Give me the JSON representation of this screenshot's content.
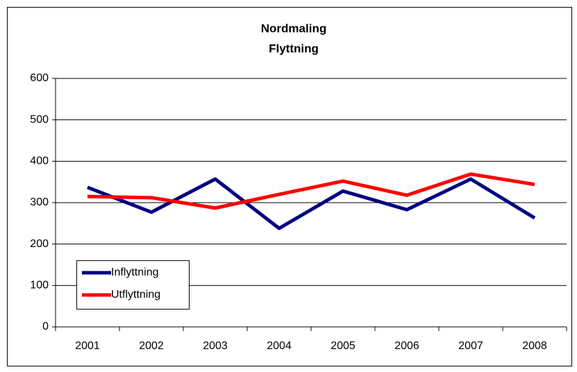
{
  "chart_data": {
    "type": "line",
    "title": "Nordmaling",
    "subtitle": "Flyttning",
    "categories": [
      "2001",
      "2002",
      "2003",
      "2004",
      "2005",
      "2006",
      "2007",
      "2008"
    ],
    "series": [
      {
        "name": "Inflyttning",
        "color": "#000080",
        "values": [
          337,
          277,
          357,
          238,
          328,
          283,
          357,
          263
        ]
      },
      {
        "name": "Utflyttning",
        "color": "#ff0000",
        "values": [
          315,
          312,
          287,
          320,
          352,
          318,
          369,
          344
        ]
      }
    ],
    "ylim": [
      0,
      600
    ],
    "yticks": [
      0,
      100,
      200,
      300,
      400,
      500,
      600
    ],
    "grid": true,
    "legend": "lower-left"
  }
}
